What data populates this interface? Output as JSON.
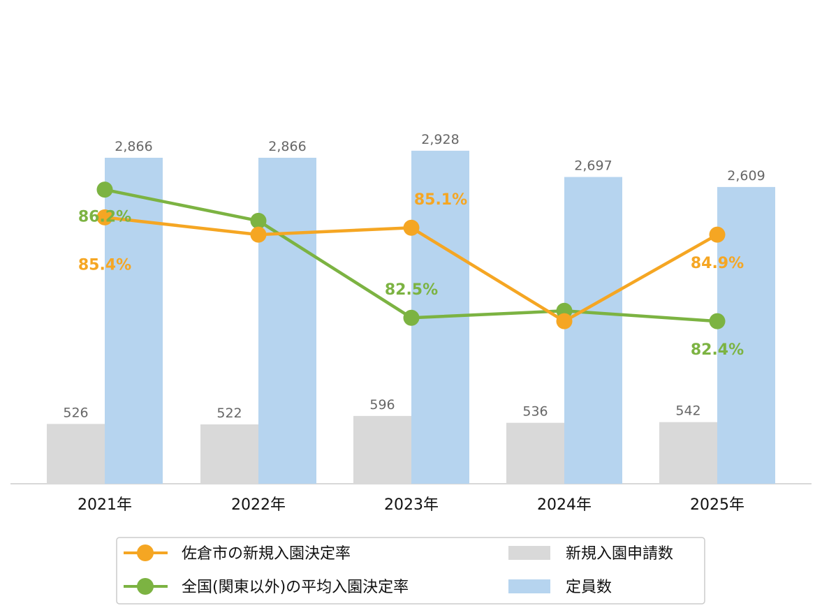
{
  "chart_data": {
    "type": "bar+line",
    "categories": [
      "2021年",
      "2022年",
      "2023年",
      "2024年",
      "2025年"
    ],
    "bar_series": [
      {
        "name": "新規入園申請数",
        "color": "#d9d9d9",
        "values": [
          526,
          522,
          596,
          536,
          542
        ]
      },
      {
        "name": "定員数",
        "color": "#b6d4ef",
        "values": [
          2866,
          2866,
          2928,
          2697,
          2609
        ]
      }
    ],
    "bar_labels": {
      "applications": [
        "526",
        "522",
        "596",
        "536",
        "542"
      ],
      "capacity": [
        "2,866",
        "2,866",
        "2,928",
        "2,697",
        "2,609"
      ]
    },
    "line_series": [
      {
        "name": "佐倉市の新規入園決定率",
        "color": "#f5a623",
        "values": [
          85.4,
          84.9,
          85.1,
          82.4,
          84.9
        ],
        "labels": [
          "85.4%",
          "",
          "85.1%",
          "",
          "84.9%"
        ]
      },
      {
        "name": "全国(関東以外)の平均入園決定率",
        "color": "#7cb342",
        "values": [
          86.2,
          85.3,
          82.5,
          82.7,
          82.4
        ],
        "labels": [
          "86.2%",
          "",
          "82.5%",
          "",
          "82.4%"
        ]
      }
    ],
    "y_bar_range": [
      0,
      3000
    ],
    "legend_position": "bottom",
    "grid": false
  }
}
